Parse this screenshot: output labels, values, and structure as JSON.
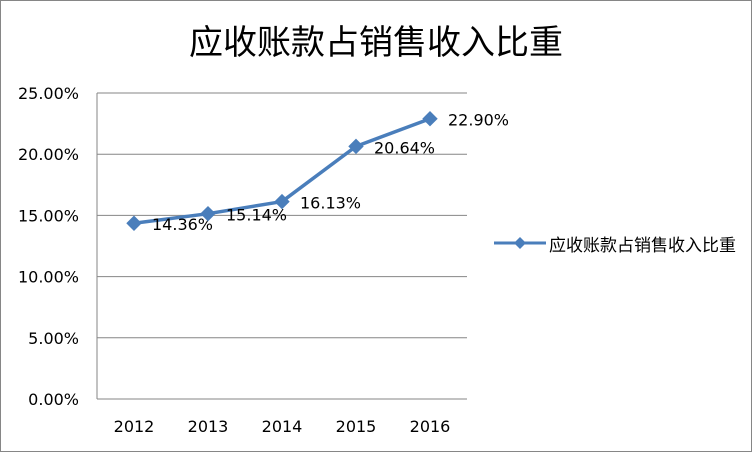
{
  "chart_data": {
    "type": "line",
    "title": "应收账款占销售收入比重",
    "categories": [
      "2012",
      "2013",
      "2014",
      "2015",
      "2016"
    ],
    "series": [
      {
        "name": "应收账款占销售收入比重",
        "values": [
          14.36,
          15.14,
          16.13,
          20.64,
          22.9
        ],
        "labels": [
          "14.36%",
          "15.14%",
          "16.13%",
          "20.64%",
          "22.90%"
        ]
      }
    ],
    "ylim": [
      0,
      25
    ],
    "yticks": [
      {
        "value": 0,
        "label": "0.00%"
      },
      {
        "value": 5,
        "label": "5.00%"
      },
      {
        "value": 10,
        "label": "10.00%"
      },
      {
        "value": 15,
        "label": "15.00%"
      },
      {
        "value": 20,
        "label": "20.00%"
      },
      {
        "value": 25,
        "label": "25.00%"
      }
    ],
    "grid": true,
    "legend_position": "right",
    "colors": {
      "series": "#4A7EBB",
      "grid": "#868686",
      "text": "#000000"
    }
  }
}
